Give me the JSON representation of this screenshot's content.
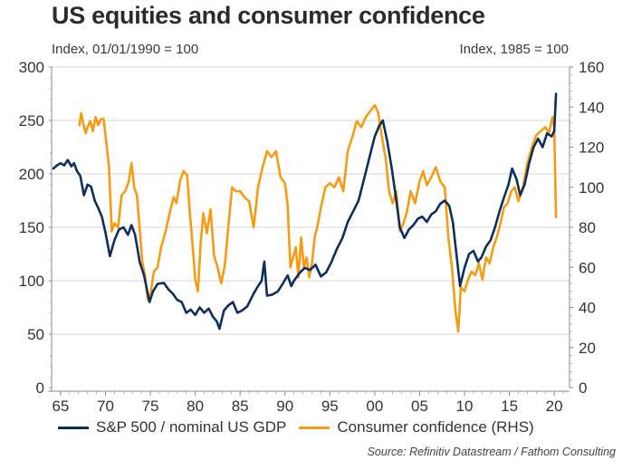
{
  "title": "US equities and consumer confidence",
  "subtitle_left": "Index, 01/01/1990 = 100",
  "subtitle_right": "Index, 1985 = 100",
  "source": "Source: Refinitiv Datastream / Fathom Consulting",
  "colors": {
    "sp500": "#0e2f5c",
    "confidence": "#f59c14",
    "grid": "#d4d4d4",
    "axis": "#888888"
  },
  "chart_data": {
    "type": "line",
    "title": "US equities and consumer confidence",
    "xlabel": "",
    "ylabel": "Index, 01/01/1990 = 100",
    "y2label": "Index, 1985 = 100",
    "xlim": [
      1964.0,
      2021.7
    ],
    "ylim": [
      0,
      300
    ],
    "y2lim": [
      0,
      160
    ],
    "grid": true,
    "legend_position": "bottom",
    "x_ticks": [
      1965,
      1970,
      1975,
      1980,
      1985,
      1990,
      1995,
      2000,
      2005,
      2010,
      2015,
      2020
    ],
    "x_tick_labels": [
      "65",
      "70",
      "75",
      "80",
      "85",
      "90",
      "95",
      "00",
      "05",
      "10",
      "15",
      "20"
    ],
    "y_ticks": [
      0,
      50,
      100,
      150,
      200,
      250,
      300
    ],
    "y_tick_labels": [
      "0",
      "50",
      "100",
      "150",
      "200",
      "250",
      "300"
    ],
    "y2_ticks": [
      0,
      20,
      40,
      60,
      80,
      100,
      120,
      140,
      160
    ],
    "y2_tick_labels": [
      "0",
      "20",
      "40",
      "60",
      "80",
      "100",
      "120",
      "140",
      "160"
    ],
    "series": [
      {
        "name": "S&P 500 / nominal US GDP",
        "axis": "left",
        "x": [
          1964.2,
          1964.6,
          1965.0,
          1965.4,
          1965.8,
          1966.2,
          1966.5,
          1966.8,
          1967.2,
          1967.6,
          1968.0,
          1968.4,
          1968.8,
          1969.2,
          1969.6,
          1970.0,
          1970.5,
          1971.0,
          1971.5,
          1972.0,
          1972.5,
          1972.9,
          1973.3,
          1973.8,
          1974.3,
          1974.9,
          1975.3,
          1975.8,
          1976.5,
          1977.0,
          1977.5,
          1978.0,
          1978.5,
          1979.0,
          1979.5,
          1980.0,
          1980.5,
          1981.0,
          1981.5,
          1982.0,
          1982.4,
          1982.7,
          1983.2,
          1983.7,
          1984.2,
          1984.7,
          1985.2,
          1985.8,
          1986.5,
          1987.0,
          1987.4,
          1987.7,
          1988.0,
          1988.6,
          1989.2,
          1989.8,
          1990.3,
          1990.7,
          1991.0,
          1991.6,
          1992.2,
          1992.8,
          1993.4,
          1994.0,
          1994.6,
          1995.2,
          1995.8,
          1996.4,
          1997.0,
          1997.6,
          1998.2,
          1998.8,
          1999.4,
          2000.0,
          2000.5,
          2000.9,
          2001.4,
          2001.9,
          2002.4,
          2002.8,
          2003.3,
          2003.8,
          2004.3,
          2004.8,
          2005.3,
          2005.8,
          2006.3,
          2006.8,
          2007.3,
          2007.8,
          2008.3,
          2008.7,
          2009.1,
          2009.5,
          2010.0,
          2010.5,
          2011.0,
          2011.5,
          2011.9,
          2012.4,
          2012.9,
          2013.4,
          2013.9,
          2014.4,
          2014.9,
          2015.3,
          2015.8,
          2016.2,
          2016.7,
          2017.2,
          2017.7,
          2018.2,
          2018.7,
          2019.2,
          2019.7,
          2020.0,
          2020.2
        ],
        "values": [
          205,
          208,
          210,
          208,
          213,
          207,
          210,
          203,
          198,
          180,
          190,
          188,
          175,
          168,
          160,
          145,
          123,
          138,
          148,
          150,
          143,
          152,
          143,
          118,
          105,
          80,
          90,
          97,
          98,
          92,
          88,
          82,
          80,
          70,
          73,
          68,
          75,
          70,
          74,
          66,
          62,
          55,
          72,
          77,
          80,
          70,
          72,
          76,
          88,
          95,
          100,
          118,
          86,
          87,
          90,
          98,
          105,
          95,
          100,
          107,
          112,
          110,
          115,
          104,
          108,
          118,
          130,
          140,
          155,
          165,
          175,
          195,
          215,
          235,
          245,
          250,
          230,
          205,
          175,
          150,
          140,
          148,
          152,
          158,
          160,
          155,
          162,
          165,
          172,
          175,
          170,
          155,
          125,
          95,
          112,
          125,
          128,
          118,
          122,
          132,
          138,
          150,
          165,
          178,
          190,
          205,
          195,
          180,
          190,
          210,
          225,
          233,
          225,
          238,
          235,
          240,
          275
        ]
      },
      {
        "name": "Consumer confidence (RHS)",
        "axis": "right",
        "x": [
          1967.1,
          1967.3,
          1967.5,
          1967.8,
          1968.0,
          1968.3,
          1968.6,
          1968.9,
          1969.2,
          1969.5,
          1969.8,
          1970.1,
          1970.4,
          1970.7,
          1971.0,
          1971.4,
          1971.8,
          1972.2,
          1972.6,
          1972.9,
          1973.2,
          1973.5,
          1973.8,
          1974.1,
          1974.4,
          1974.7,
          1975.0,
          1975.4,
          1975.8,
          1976.2,
          1976.7,
          1977.2,
          1977.6,
          1977.9,
          1978.3,
          1978.7,
          1979.1,
          1979.4,
          1979.7,
          1980.0,
          1980.3,
          1980.6,
          1980.9,
          1981.3,
          1981.7,
          1982.1,
          1982.5,
          1982.9,
          1983.3,
          1983.7,
          1984.1,
          1984.5,
          1985.0,
          1985.5,
          1986.0,
          1986.5,
          1987.0,
          1987.5,
          1988.0,
          1988.5,
          1989.0,
          1989.5,
          1990.0,
          1990.3,
          1990.6,
          1990.9,
          1991.2,
          1991.5,
          1991.8,
          1992.1,
          1992.4,
          1992.7,
          1993.0,
          1993.3,
          1993.6,
          1994.0,
          1994.5,
          1995.0,
          1995.5,
          1996.0,
          1996.5,
          1997.0,
          1997.5,
          1998.0,
          1998.5,
          1999.0,
          1999.5,
          2000.0,
          2000.4,
          2000.8,
          2001.2,
          2001.6,
          2002.0,
          2002.4,
          2002.8,
          2003.2,
          2003.6,
          2004.0,
          2004.5,
          2005.0,
          2005.4,
          2005.8,
          2006.3,
          2006.8,
          2007.3,
          2007.8,
          2008.2,
          2008.6,
          2009.0,
          2009.3,
          2009.6,
          2010.0,
          2010.4,
          2010.8,
          2011.2,
          2011.6,
          2012.0,
          2012.4,
          2012.8,
          2013.2,
          2013.6,
          2014.0,
          2014.4,
          2014.8,
          2015.2,
          2015.6,
          2016.0,
          2016.5,
          2017.0,
          2017.5,
          2018.0,
          2018.5,
          2019.0,
          2019.4,
          2019.8,
          2020.0,
          2020.2
        ],
        "values": [
          131,
          137,
          132,
          127,
          130,
          133,
          128,
          135,
          131,
          134,
          134,
          122,
          110,
          78,
          82,
          80,
          96,
          98,
          103,
          112,
          100,
          96,
          80,
          63,
          56,
          44,
          46,
          58,
          60,
          70,
          78,
          88,
          95,
          92,
          103,
          108,
          106,
          87,
          72,
          54,
          48,
          72,
          87,
          77,
          89,
          66,
          60,
          52,
          61,
          81,
          100,
          98,
          98,
          95,
          93,
          80,
          100,
          110,
          118,
          115,
          118,
          105,
          102,
          91,
          60,
          65,
          70,
          55,
          75,
          60,
          65,
          55,
          62,
          75,
          80,
          90,
          100,
          102,
          100,
          105,
          98,
          118,
          125,
          133,
          130,
          135,
          138,
          141,
          137,
          125,
          115,
          98,
          92,
          98,
          78,
          82,
          88,
          98,
          92,
          103,
          108,
          101,
          105,
          110,
          103,
          100,
          75,
          60,
          38,
          28,
          50,
          48,
          54,
          58,
          56,
          62,
          54,
          65,
          62,
          70,
          75,
          82,
          90,
          92,
          98,
          100,
          93,
          100,
          112,
          120,
          126,
          128,
          130,
          127,
          135,
          130,
          85
        ]
      }
    ]
  }
}
